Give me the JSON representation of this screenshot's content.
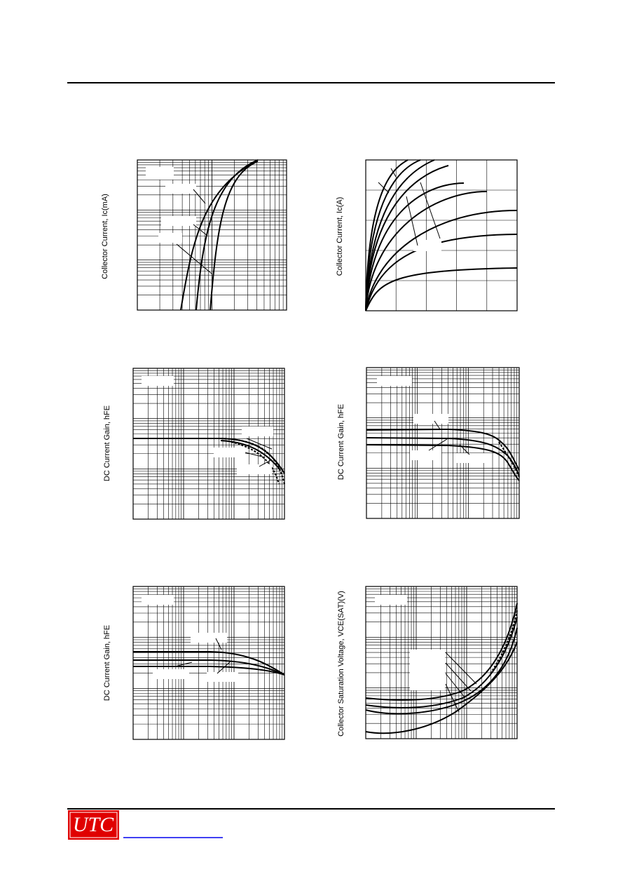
{
  "axis_labels": [
    "Collector Current, Ic(mA)",
    "Collector Current, Ic(A)",
    "DC Current Gain, hFE",
    "DC Current Gain, hFE",
    "DC Current Gain, hFE",
    "Collector  Saturation Voltage, VCE(SAT)(V)"
  ],
  "logo": "UTC"
}
